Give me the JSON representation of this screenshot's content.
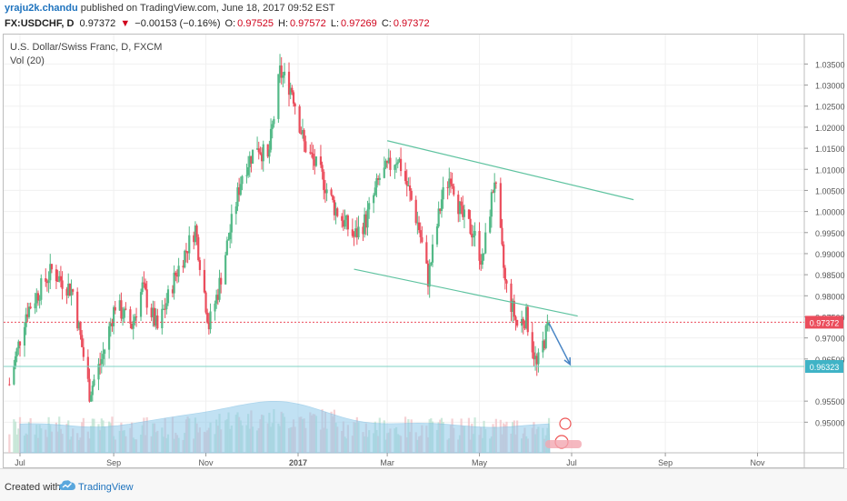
{
  "header": {
    "author": "yraju2k.chandu",
    "published_text": "published on TradingView.com, June 18, 2017 09:52 EST",
    "symbol": "FX:USDCHF, D",
    "last_price": "0.97372",
    "change": "−0.00153 (−0.16%)",
    "o_label": "O:",
    "o_value": "0.97525",
    "h_label": "H:",
    "h_value": "0.97572",
    "l_label": "L:",
    "l_value": "0.97269",
    "c_label": "C:",
    "c_value": "0.97372"
  },
  "chart_title": "U.S. Dollar/Swiss Franc, D, FXCM",
  "volume_label": "Vol (20)",
  "footer": {
    "created_with": "Created with",
    "brand": "TradingView"
  },
  "colors": {
    "up": "#53b987",
    "down": "#eb4d5c",
    "trendline": "#5fc3a0",
    "support": "#7fd3c6",
    "arrow": "#4a86c5",
    "volume": "#8fc9ea",
    "price_badge": "#eb4d5c",
    "support_badge": "#3fb3c6"
  },
  "chart_data": {
    "type": "candlestick",
    "ylim": [
      0.945,
      1.038
    ],
    "yticks": [
      "1.03500",
      "1.03000",
      "1.02500",
      "1.02000",
      "1.01500",
      "1.01000",
      "1.00500",
      "1.00000",
      "0.99500",
      "0.99000",
      "0.98500",
      "0.98000",
      "0.97500",
      "0.97000",
      "0.96500",
      "0.95500",
      "0.95000"
    ],
    "ytick_values": [
      1.035,
      1.03,
      1.025,
      1.02,
      1.015,
      1.01,
      1.005,
      1.0,
      0.995,
      0.99,
      0.985,
      0.98,
      0.975,
      0.97,
      0.965,
      0.955,
      0.95
    ],
    "xticks": [
      "Jul",
      "Sep",
      "Nov",
      "2017",
      "Mar",
      "May",
      "Jul",
      "Sep",
      "Nov"
    ],
    "xtick_dates": [
      "2016-07-01",
      "2016-09-01",
      "2016-11-01",
      "2017-01-01",
      "2017-03-01",
      "2017-05-01",
      "2017-07-01",
      "2017-09-01",
      "2017-11-01"
    ],
    "price_line": {
      "value": 0.97372,
      "label": "0.97372"
    },
    "support_line": {
      "value": 0.96323,
      "label": "0.96323"
    },
    "channel_upper": [
      [
        "2017-03-01",
        1.0168
      ],
      [
        "2017-08-11",
        1.0028
      ]
    ],
    "channel_lower": [
      [
        "2017-02-07",
        0.9863
      ],
      [
        "2017-07-05",
        0.9752
      ]
    ],
    "forecast_arrow": [
      [
        "2017-06-16",
        0.9735
      ],
      [
        "2017-06-30",
        0.9637
      ]
    ],
    "anchors": [
      [
        "2016-06-24",
        0.959
      ],
      [
        "2016-07-05",
        0.976
      ],
      [
        "2016-07-22",
        0.986
      ],
      [
        "2016-08-05",
        0.981
      ],
      [
        "2016-08-16",
        0.957
      ],
      [
        "2016-08-25",
        0.966
      ],
      [
        "2016-09-02",
        0.978
      ],
      [
        "2016-09-13",
        0.973
      ],
      [
        "2016-09-20",
        0.982
      ],
      [
        "2016-09-30",
        0.972
      ],
      [
        "2016-10-12",
        0.985
      ],
      [
        "2016-10-25",
        0.996
      ],
      [
        "2016-11-03",
        0.973
      ],
      [
        "2016-11-09",
        0.981
      ],
      [
        "2016-11-15",
        0.992
      ],
      [
        "2016-11-25",
        1.009
      ],
      [
        "2016-12-05",
        1.016
      ],
      [
        "2016-12-12",
        1.012
      ],
      [
        "2016-12-20",
        1.033
      ],
      [
        "2016-12-28",
        1.029
      ],
      [
        "2017-01-05",
        1.016
      ],
      [
        "2017-01-17",
        1.008
      ],
      [
        "2017-01-25",
        1.001
      ],
      [
        "2017-02-07",
        0.994
      ],
      [
        "2017-02-15",
        0.998
      ],
      [
        "2017-02-24",
        1.008
      ],
      [
        "2017-03-08",
        1.013
      ],
      [
        "2017-03-16",
        1.004
      ],
      [
        "2017-03-22",
        0.996
      ],
      [
        "2017-03-28",
        0.984
      ],
      [
        "2017-04-06",
        1.003
      ],
      [
        "2017-04-12",
        1.009
      ],
      [
        "2017-04-19",
        0.999
      ],
      [
        "2017-04-27",
        0.995
      ],
      [
        "2017-05-03",
        0.988
      ],
      [
        "2017-05-11",
        1.008
      ],
      [
        "2017-05-18",
        0.983
      ],
      [
        "2017-05-26",
        0.973
      ],
      [
        "2017-06-01",
        0.975
      ],
      [
        "2017-06-08",
        0.963
      ],
      [
        "2017-06-16",
        0.9737
      ]
    ]
  }
}
